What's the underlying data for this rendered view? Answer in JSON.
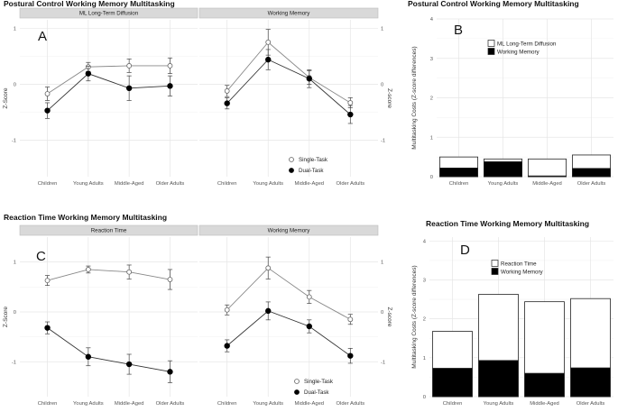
{
  "chart_data": [
    {
      "id": "A",
      "type": "line",
      "panel_label": "A",
      "title": "Postural Control Working Memory Multitasking",
      "ylabel": "Z-Score",
      "ylabel_right": "Z-score",
      "categories": [
        "Children",
        "Young Adults",
        "Middle-Aged",
        "Older Adults"
      ],
      "yticks": [
        "1",
        "0",
        "-1"
      ],
      "ylim": [
        -1.65,
        1.15
      ],
      "legend": [
        "Single-Task",
        "Dual-Task"
      ],
      "facets": [
        {
          "strip": "ML Long-Term Diffusion",
          "series": [
            {
              "name": "Single-Task",
              "values": [
                -0.17,
                0.31,
                0.33,
                0.33
              ],
              "err": [
                0.12,
                0.08,
                0.12,
                0.14
              ]
            },
            {
              "name": "Dual-Task",
              "values": [
                -0.47,
                0.19,
                -0.07,
                -0.03
              ],
              "err": [
                0.14,
                0.13,
                0.22,
                0.18
              ]
            }
          ]
        },
        {
          "strip": "Working Memory",
          "series": [
            {
              "name": "Single-Task",
              "values": [
                -0.12,
                0.75,
                0.12,
                -0.33
              ],
              "err": [
                0.1,
                0.23,
                0.12,
                0.09
              ]
            },
            {
              "name": "Dual-Task",
              "values": [
                -0.34,
                0.44,
                0.1,
                -0.54
              ],
              "err": [
                0.1,
                0.18,
                0.16,
                0.16
              ]
            }
          ]
        }
      ]
    },
    {
      "id": "B",
      "type": "bar",
      "panel_label": "B",
      "title": "Postural Control Working Memory Multitasking",
      "ylabel": "Multitasking Costs (Z-score differences)",
      "categories": [
        "Children",
        "Young Adults",
        "Middle-Aged",
        "Older Adults"
      ],
      "yticks": [
        "0",
        "1",
        "2",
        "3",
        "4"
      ],
      "ylim": [
        0,
        4
      ],
      "series": [
        {
          "name": "ML Long-Term Diffusion",
          "values": [
            0.5,
            0.45,
            0.45,
            0.55
          ],
          "color": "#ffffff"
        },
        {
          "name": "Working Memory",
          "values": [
            0.22,
            0.38,
            0.02,
            0.21
          ],
          "color": "#000000"
        }
      ]
    },
    {
      "id": "C",
      "type": "line",
      "panel_label": "C",
      "title": "Reaction Time Working Memory Multitasking",
      "ylabel": "Z-Score",
      "ylabel_right": "Z-score",
      "categories": [
        "Children",
        "Young Adults",
        "Middle-Aged",
        "Older Adults"
      ],
      "yticks": [
        "1",
        "0",
        "-1"
      ],
      "ylim": [
        -1.7,
        1.5
      ],
      "legend": [
        "Single-Task",
        "Dual-Task"
      ],
      "facets": [
        {
          "strip": "Reaction Time",
          "series": [
            {
              "name": "Single-Task",
              "values": [
                0.63,
                0.85,
                0.8,
                0.65
              ],
              "err": [
                0.1,
                0.07,
                0.14,
                0.2
              ]
            },
            {
              "name": "Dual-Task",
              "values": [
                -0.32,
                -0.9,
                -1.05,
                -1.2
              ],
              "err": [
                0.12,
                0.18,
                0.2,
                0.22
              ]
            }
          ]
        },
        {
          "strip": "Working Memory",
          "series": [
            {
              "name": "Single-Task",
              "values": [
                0.04,
                0.88,
                0.3,
                -0.15
              ],
              "err": [
                0.1,
                0.22,
                0.13,
                0.1
              ]
            },
            {
              "name": "Dual-Task",
              "values": [
                -0.68,
                0.02,
                -0.29,
                -0.88
              ],
              "err": [
                0.12,
                0.18,
                0.13,
                0.15
              ]
            }
          ]
        }
      ]
    },
    {
      "id": "D",
      "type": "bar",
      "panel_label": "D",
      "title": "Reaction Time Working Memory Multitasking",
      "ylabel": "Multitasking Costs (Z-score differences)",
      "categories": [
        "Children",
        "Young Adults",
        "Middle-Aged",
        "Older Adults"
      ],
      "yticks": [
        "0",
        "1",
        "2",
        "3",
        "4"
      ],
      "ylim": [
        0,
        4.1
      ],
      "series": [
        {
          "name": "Reaction Time",
          "values": [
            1.68,
            2.63,
            2.44,
            2.52
          ],
          "color": "#ffffff"
        },
        {
          "name": "Working Memory",
          "values": [
            0.73,
            0.93,
            0.6,
            0.74
          ],
          "color": "#000000"
        }
      ]
    }
  ]
}
